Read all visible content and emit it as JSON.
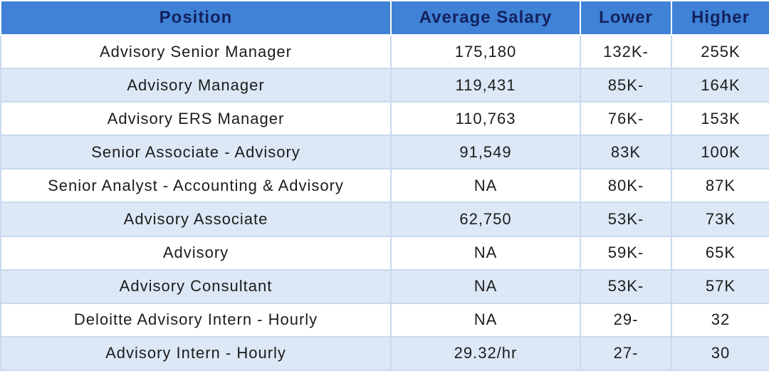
{
  "table": {
    "header": [
      "Position",
      "Average Salary",
      "Lower",
      "Higher"
    ],
    "rows": [
      [
        "Advisory Senior Manager",
        "175,180",
        "132K-",
        "255K"
      ],
      [
        "Advisory Manager",
        "119,431",
        "85K-",
        "164K"
      ],
      [
        "Advisory ERS Manager",
        "110,763",
        "76K-",
        "153K"
      ],
      [
        "Senior Associate - Advisory",
        "91,549",
        "83K",
        "100K"
      ],
      [
        "Senior Analyst - Accounting & Advisory",
        "NA",
        "80K-",
        "87K"
      ],
      [
        "Advisory Associate",
        "62,750",
        "53K-",
        "73K"
      ],
      [
        "Advisory",
        "NA",
        "59K-",
        "65K"
      ],
      [
        "Advisory Consultant",
        "NA",
        "53K-",
        "57K"
      ],
      [
        "Deloitte Advisory Intern - Hourly",
        "NA",
        "29-",
        "32"
      ],
      [
        "Advisory Intern - Hourly",
        "29.32/hr",
        "27-",
        "30"
      ]
    ]
  }
}
